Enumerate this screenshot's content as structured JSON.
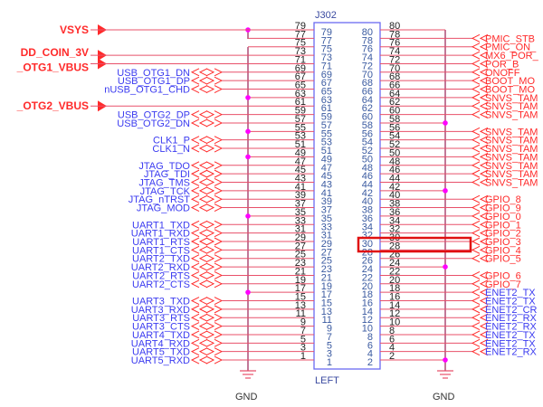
{
  "component": {
    "ref": "J302",
    "side_label": "LEFT",
    "ground_label": "GND"
  },
  "colors": {
    "red_net": "#ff2a2a",
    "blue_net": "#3b3bf0",
    "wire": "#a03060",
    "pin_line": "#e8506a",
    "junction": "#ff00ff",
    "box": "#6a6af0",
    "highlight": "#e01010"
  },
  "left_pins": [
    {
      "pin": 79,
      "net": "VSYS",
      "kind": "power"
    },
    {
      "pin": 77,
      "net": "",
      "kind": "vsys"
    },
    {
      "pin": 75,
      "net": "",
      "kind": "gnd"
    },
    {
      "pin": 73,
      "net": "DD_COIN_3V",
      "kind": "power"
    },
    {
      "pin": 71,
      "net": "_OTG1_VBUS",
      "kind": "power"
    },
    {
      "pin": 69,
      "net": "USB_OTG1_DN",
      "kind": "signal"
    },
    {
      "pin": 67,
      "net": "USB_OTG1_DP",
      "kind": "signal"
    },
    {
      "pin": 65,
      "net": "nUSB_OTG1_CHD",
      "kind": "signal"
    },
    {
      "pin": 63,
      "net": "",
      "kind": "gnd"
    },
    {
      "pin": 61,
      "net": "_OTG2_VBUS",
      "kind": "power"
    },
    {
      "pin": 59,
      "net": "USB_OTG2_DP",
      "kind": "signal"
    },
    {
      "pin": 57,
      "net": "USB_OTG2_DN",
      "kind": "signal"
    },
    {
      "pin": 55,
      "net": "",
      "kind": "gnd"
    },
    {
      "pin": 53,
      "net": "CLK1_P",
      "kind": "signal"
    },
    {
      "pin": 51,
      "net": "CLK1_N",
      "kind": "signal"
    },
    {
      "pin": 49,
      "net": "",
      "kind": "gnd"
    },
    {
      "pin": 47,
      "net": "JTAG_TDO",
      "kind": "signal"
    },
    {
      "pin": 45,
      "net": "JTAG_TDI",
      "kind": "signal"
    },
    {
      "pin": 43,
      "net": "JTAG_TMS",
      "kind": "signal"
    },
    {
      "pin": 41,
      "net": "JTAG_TCK",
      "kind": "signal"
    },
    {
      "pin": 39,
      "net": "JTAG_nTRST",
      "kind": "signal"
    },
    {
      "pin": 37,
      "net": "JTAG_MOD",
      "kind": "signal"
    },
    {
      "pin": 35,
      "net": "",
      "kind": "gnd"
    },
    {
      "pin": 33,
      "net": "UART1_TXD",
      "kind": "signal"
    },
    {
      "pin": 31,
      "net": "UART1_RXD",
      "kind": "signal"
    },
    {
      "pin": 29,
      "net": "UART1_RTS",
      "kind": "signal"
    },
    {
      "pin": 27,
      "net": "UART1_CTS",
      "kind": "signal"
    },
    {
      "pin": 25,
      "net": "UART2_TXD",
      "kind": "signal"
    },
    {
      "pin": 23,
      "net": "UART2_RXD",
      "kind": "signal"
    },
    {
      "pin": 21,
      "net": "UART2_RTS",
      "kind": "signal"
    },
    {
      "pin": 19,
      "net": "UART2_CTS",
      "kind": "signal"
    },
    {
      "pin": 17,
      "net": "",
      "kind": "gnd"
    },
    {
      "pin": 15,
      "net": "UART3_TXD",
      "kind": "signal"
    },
    {
      "pin": 13,
      "net": "UART3_RXD",
      "kind": "signal"
    },
    {
      "pin": 11,
      "net": "UART3_RTS",
      "kind": "signal"
    },
    {
      "pin": 9,
      "net": "UART3_CTS",
      "kind": "signal"
    },
    {
      "pin": 7,
      "net": "UART4_TXD",
      "kind": "signal"
    },
    {
      "pin": 5,
      "net": "UART4_RXD",
      "kind": "signal"
    },
    {
      "pin": 3,
      "net": "UART5_TXD",
      "kind": "signal"
    },
    {
      "pin": 1,
      "net": "UART5_RXD",
      "kind": "signal"
    }
  ],
  "right_pins": [
    {
      "pin": 80,
      "net": "",
      "kind": "gnd"
    },
    {
      "pin": 78,
      "net": "PMIC_STB",
      "kind": "red"
    },
    {
      "pin": 76,
      "net": "PMIC_ON_",
      "kind": "red"
    },
    {
      "pin": 74,
      "net": "MX6_POR_",
      "kind": "red"
    },
    {
      "pin": 72,
      "net": "POR_B",
      "kind": "red"
    },
    {
      "pin": 70,
      "net": "ONOFF",
      "kind": "red"
    },
    {
      "pin": 68,
      "net": "BOOT_MO",
      "kind": "red"
    },
    {
      "pin": 66,
      "net": "BOOT_MO",
      "kind": "red"
    },
    {
      "pin": 64,
      "net": "SNVS_TAM",
      "kind": "red"
    },
    {
      "pin": 62,
      "net": "SNVS_TAM",
      "kind": "red"
    },
    {
      "pin": 60,
      "net": "SNVS_TAM",
      "kind": "red"
    },
    {
      "pin": 58,
      "net": "",
      "kind": "gnd"
    },
    {
      "pin": 56,
      "net": "SNVS_TAM",
      "kind": "red"
    },
    {
      "pin": 54,
      "net": "SNVS_TAM",
      "kind": "red"
    },
    {
      "pin": 52,
      "net": "SNVS_TAM",
      "kind": "red"
    },
    {
      "pin": 50,
      "net": "SNVS_TAM",
      "kind": "red"
    },
    {
      "pin": 48,
      "net": "SNVS_TAM",
      "kind": "red"
    },
    {
      "pin": 46,
      "net": "SNVS_TAM",
      "kind": "red"
    },
    {
      "pin": 44,
      "net": "SNVS_TAM",
      "kind": "red"
    },
    {
      "pin": 42,
      "net": "",
      "kind": "gnd"
    },
    {
      "pin": 40,
      "net": "GPIO_8",
      "kind": "red"
    },
    {
      "pin": 38,
      "net": "GPIO_9",
      "kind": "red"
    },
    {
      "pin": 36,
      "net": "GPIO_0",
      "kind": "red"
    },
    {
      "pin": 34,
      "net": "GPIO_1",
      "kind": "red"
    },
    {
      "pin": 32,
      "net": "GPIO_2",
      "kind": "red"
    },
    {
      "pin": 30,
      "net": "GPIO_3",
      "kind": "red"
    },
    {
      "pin": 28,
      "net": "GPIO_4",
      "kind": "red"
    },
    {
      "pin": 26,
      "net": "GPIO_5",
      "kind": "red"
    },
    {
      "pin": 24,
      "net": "",
      "kind": "gnd"
    },
    {
      "pin": 22,
      "net": "GPIO_6",
      "kind": "red"
    },
    {
      "pin": 20,
      "net": "GPIO_7",
      "kind": "red"
    },
    {
      "pin": 18,
      "net": "ENET2_TX",
      "kind": "blue"
    },
    {
      "pin": 16,
      "net": "ENET2_TX",
      "kind": "blue"
    },
    {
      "pin": 14,
      "net": "ENET2_CR",
      "kind": "blue"
    },
    {
      "pin": 12,
      "net": "ENET2_RX",
      "kind": "blue"
    },
    {
      "pin": 10,
      "net": "ENET2_RX",
      "kind": "blue"
    },
    {
      "pin": 8,
      "net": "ENET2_TX",
      "kind": "blue"
    },
    {
      "pin": 6,
      "net": "ENET2_TX",
      "kind": "blue"
    },
    {
      "pin": 4,
      "net": "ENET2_RX",
      "kind": "blue"
    },
    {
      "pin": 2,
      "net": "",
      "kind": "gnd"
    }
  ],
  "highlight": {
    "pins": [
      30,
      28
    ],
    "net": "GPIO_3"
  }
}
